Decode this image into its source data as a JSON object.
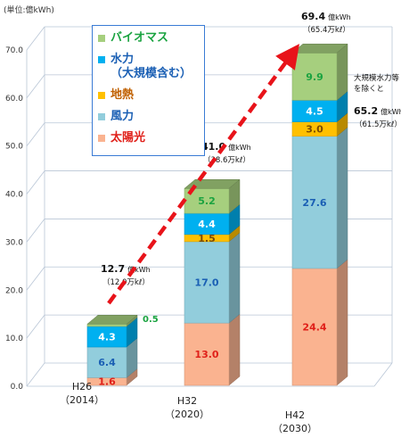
{
  "unit_label": "(単位:億kWh)",
  "legend": [
    {
      "name": "バイオマス",
      "color": "#a6cf7e",
      "text_color": "#1aa340"
    },
    {
      "name": "水力\n（大規模含む）",
      "color": "#00b0f0",
      "text_color": "#1a5fb4"
    },
    {
      "name": "地熱",
      "color": "#ffc000",
      "text_color": "#c06000"
    },
    {
      "name": "風力",
      "color": "#92cddc",
      "text_color": "#1a5fb4"
    },
    {
      "name": "太陽光",
      "color": "#fab390",
      "text_color": "#e0201a"
    }
  ],
  "chart_data": {
    "type": "bar",
    "stacked": true,
    "categories": [
      "H26\n（2014）",
      "H32\n（2020）",
      "H42\n（2030）"
    ],
    "series": [
      {
        "name": "太陽光",
        "values": [
          1.6,
          13.0,
          24.4
        ],
        "color": "#fab390",
        "label_color": "#e0201a"
      },
      {
        "name": "風力",
        "values": [
          6.4,
          17.0,
          27.6
        ],
        "color": "#92cddc",
        "label_color": "#1a5fb4"
      },
      {
        "name": "地熱",
        "values": [
          null,
          1.5,
          3.0
        ],
        "color": "#ffc000",
        "label_color": "#7a4a00"
      },
      {
        "name": "水力（大規模含む）",
        "values": [
          4.3,
          4.4,
          4.5
        ],
        "color": "#00b0f0",
        "label_color": "#ffffff"
      },
      {
        "name": "バイオマス",
        "values": [
          0.5,
          5.2,
          9.9
        ],
        "color": "#a6cf7e",
        "label_color": "#1aa340"
      }
    ],
    "ylim": [
      0,
      70
    ],
    "yticks": [
      "0.0",
      "10.0",
      "20.0",
      "30.0",
      "40.0",
      "50.0",
      "60.0",
      "70.0"
    ],
    "totals": [
      {
        "value": "12.7",
        "unit": "億kWh",
        "sub": "（12.0万kℓ）"
      },
      {
        "value": "41.0",
        "unit": "億kWh",
        "sub": "（38.6万kℓ）"
      },
      {
        "value": "69.4",
        "unit": "億kWh",
        "sub": "（65.4万kℓ）"
      }
    ],
    "annotation": {
      "note": "大規模水力等\nを除くと",
      "value": "65.2",
      "unit": "億kWh",
      "sub": "（61.5万kℓ）"
    },
    "trend_arrow": true,
    "grid": true
  }
}
